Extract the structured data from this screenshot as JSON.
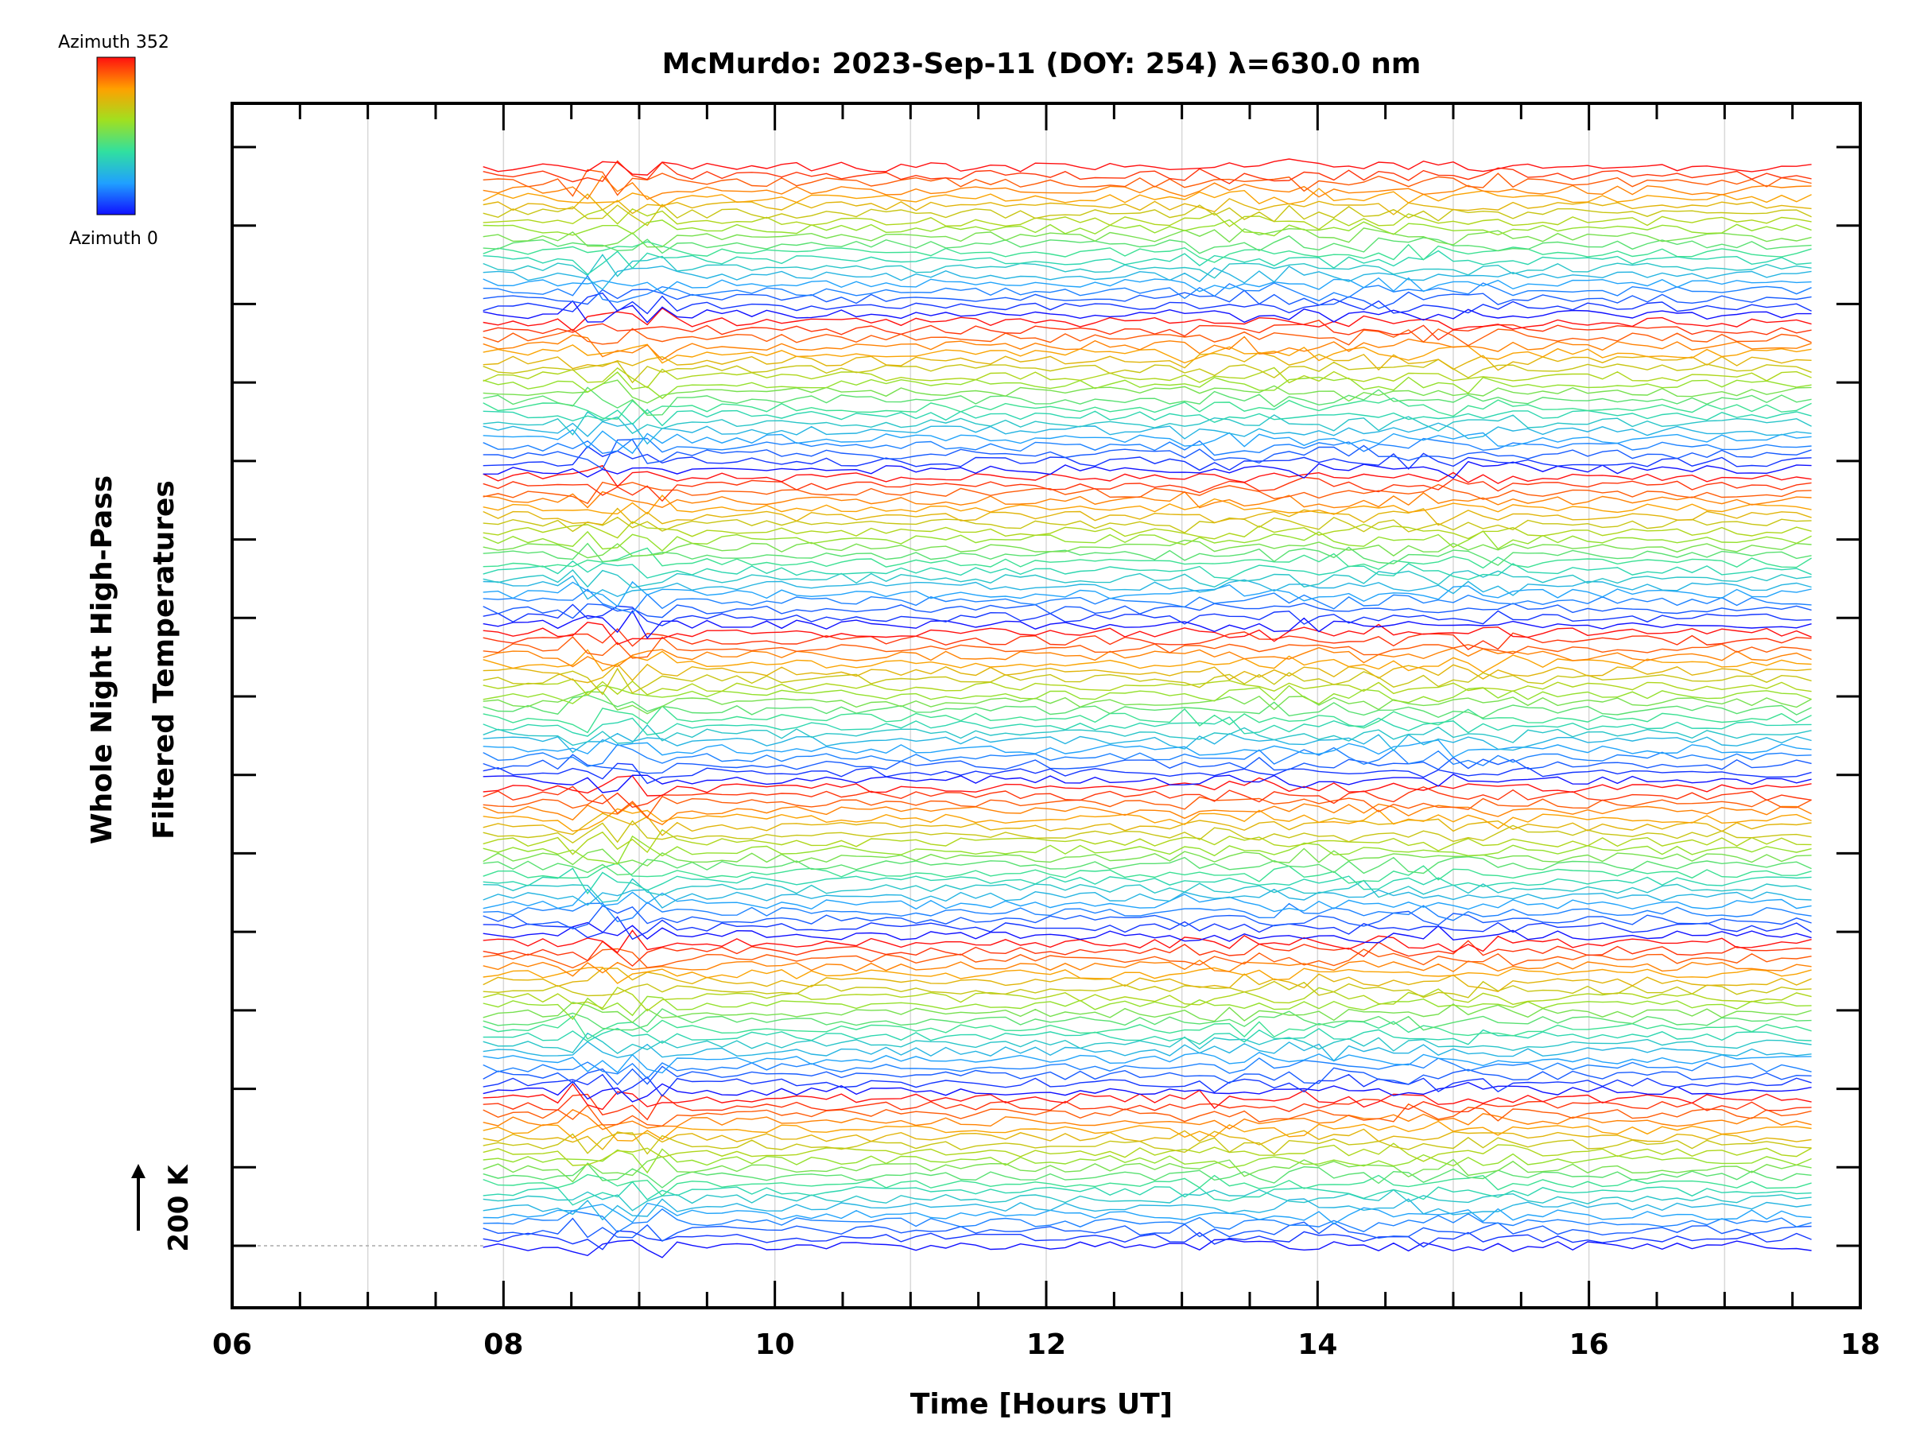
{
  "chart_data": {
    "type": "line",
    "title": "McMurdo: 2023-Sep-11 (DOY: 254) λ=630.0 nm",
    "station": "McMurdo",
    "date": "2023-Sep-11",
    "doy": 254,
    "wavelength_nm": 630.0,
    "xlabel": "Time [Hours UT]",
    "ylabel_lines": [
      "Whole Night High-Pass",
      "Filtered Temperatures"
    ],
    "xlim": [
      6,
      18
    ],
    "x_tick_labels": [
      "06",
      "08",
      "10",
      "12",
      "14",
      "16",
      "18"
    ],
    "x_tick_values": [
      6,
      8,
      10,
      12,
      14,
      16,
      18
    ],
    "x_minor_step": 0.5,
    "y_major_ticks": 15,
    "grid": "vertical lines every 1 hour",
    "data_start_hour": 7.85,
    "data_end_hour": 17.72,
    "n_series": 140,
    "trace_offset_K": 200,
    "scale_bar_label": "200 K",
    "colorbar": {
      "top_label": "Azimuth 352",
      "bottom_label": "Azimuth 0",
      "azimuth_min_deg": 0,
      "azimuth_max_deg": 352,
      "colormap": "rainbow (blue → red)"
    },
    "note": "Stacked high-pass filtered temperature traces, one per azimuth sample; traces repeat in groups cycling azimuth 0→352 (blue→red)."
  }
}
